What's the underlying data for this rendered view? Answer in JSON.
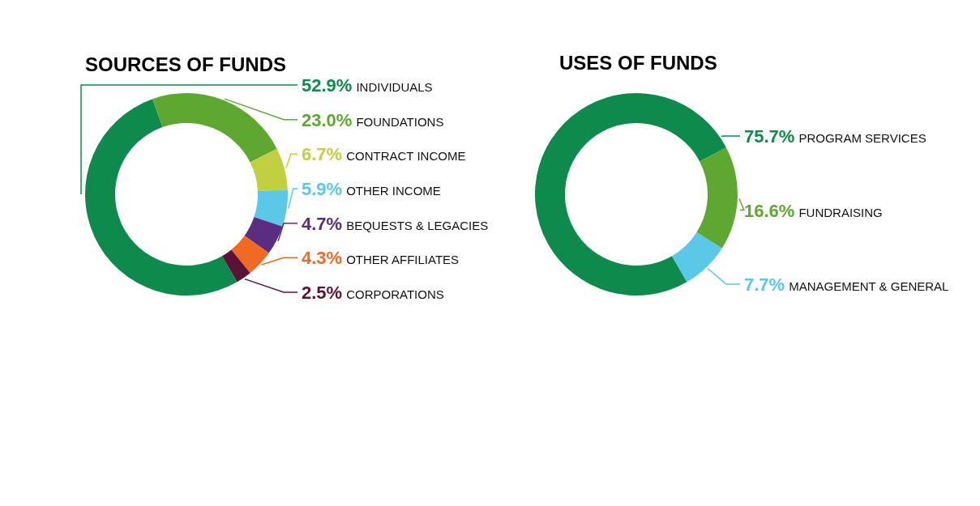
{
  "chart_data": [
    {
      "type": "donut",
      "title": "SOURCES OF FUNDS",
      "categories": [
        "INDIVIDUALS",
        "FOUNDATIONS",
        "CONTRACT INCOME",
        "OTHER INCOME",
        "BEQUESTS & LEGACIES",
        "OTHER AFFILIATES",
        "CORPORATIONS"
      ],
      "values": [
        52.9,
        23.0,
        6.7,
        5.9,
        4.7,
        4.3,
        2.5
      ],
      "value_labels": [
        "52.9%",
        "23.0%",
        "6.7%",
        "5.9%",
        "4.7%",
        "4.3%",
        "2.5%"
      ],
      "colors": [
        "#0e8a4c",
        "#5ea832",
        "#c0d040",
        "#5bc8e8",
        "#5a2d82",
        "#f06a22",
        "#5c1235"
      ]
    },
    {
      "type": "donut",
      "title": "USES OF FUNDS",
      "categories": [
        "PROGRAM SERVICES",
        "FUNDRAISING",
        "MANAGEMENT & GENERAL"
      ],
      "values": [
        75.7,
        16.6,
        7.7
      ],
      "value_labels": [
        "75.7%",
        "16.6%",
        "7.7%"
      ],
      "colors": [
        "#0e8a4c",
        "#5ea832",
        "#5bc8e8"
      ]
    }
  ]
}
